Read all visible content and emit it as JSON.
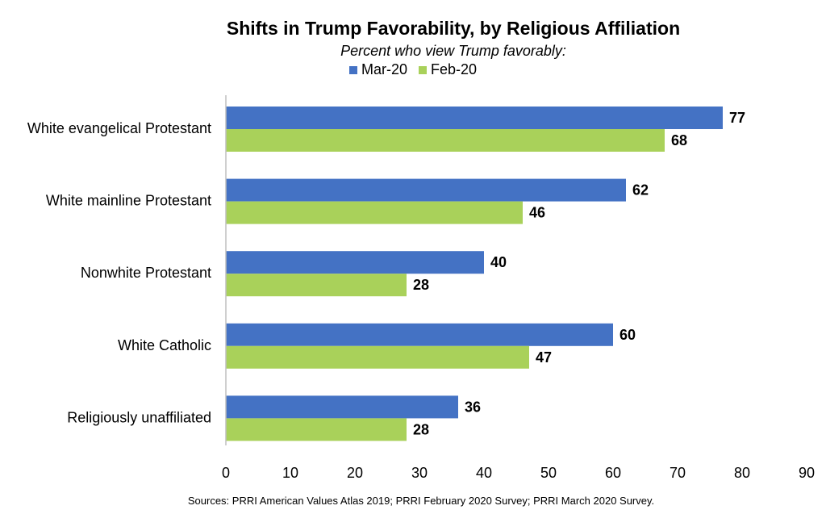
{
  "title": "Shifts in Trump Favorability, by Religious Affiliation",
  "subtitle": "Percent who view Trump favorably:",
  "source": "Sources: PRRI American Values Atlas 2019; PRRI February 2020 Survey; PRRI March 2020 Survey.",
  "legend": [
    {
      "name": "Mar-20",
      "color": "#4472C4"
    },
    {
      "name": "Feb-20",
      "color": "#A9D15A"
    }
  ],
  "chart_data": {
    "type": "bar",
    "orientation": "horizontal",
    "title": "Shifts in Trump Favorability, by Religious Affiliation",
    "subtitle": "Percent who view Trump favorably:",
    "categories": [
      "White evangelical Protestant",
      "White mainline Protestant",
      "Nonwhite Protestant",
      "White Catholic",
      "Religiously unaffiliated"
    ],
    "series": [
      {
        "name": "Mar-20",
        "color": "#4472C4",
        "values": [
          77,
          62,
          40,
          60,
          36
        ]
      },
      {
        "name": "Feb-20",
        "color": "#A9D15A",
        "values": [
          68,
          46,
          28,
          47,
          28
        ]
      }
    ],
    "xlim": [
      0,
      90
    ],
    "xticks": [
      "0",
      "10",
      "20",
      "30",
      "40",
      "50",
      "60",
      "70",
      "80",
      "90"
    ],
    "grid": false,
    "legend_position": "top",
    "data_labels": true
  }
}
